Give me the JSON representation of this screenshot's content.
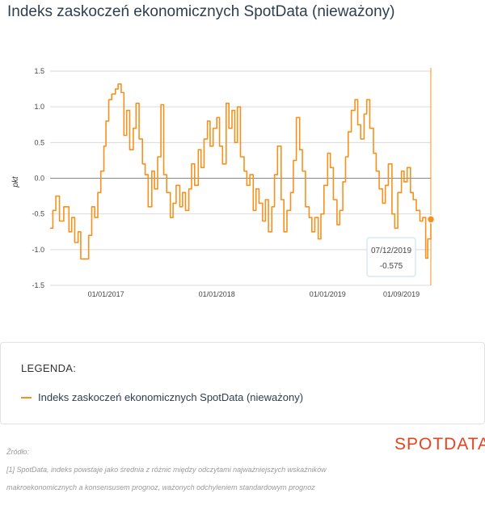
{
  "title": "Indeks zaskoczeń ekonomicznych SpotData (nieważony)",
  "chart_data": {
    "type": "line",
    "ylabel": "pkt",
    "ylim": [
      -1.5,
      1.5
    ],
    "yticks": [
      "1.5",
      "1.0",
      "0.5",
      "0.0",
      "-0.5",
      "-1.0",
      "-1.5"
    ],
    "yticks_values": [
      1.5,
      1.0,
      0.5,
      0.0,
      -0.5,
      -1.0,
      -1.5
    ],
    "xticks": [
      "01/01/2017",
      "01/01/2018",
      "01/01/2019",
      "01/09/2019"
    ],
    "xticks_dates": [
      "2017-01-01",
      "2018-01-01",
      "2019-01-01",
      "2019-09-01"
    ],
    "xlim": [
      "2016-07-01",
      "2019-12-07"
    ],
    "series": [
      {
        "color": "#f7911d",
        "points": [
          [
            "2016-07-01",
            -0.7
          ],
          [
            "2016-07-10",
            -0.45
          ],
          [
            "2016-07-20",
            -0.25
          ],
          [
            "2016-08-01",
            -0.6
          ],
          [
            "2016-08-15",
            -0.4
          ],
          [
            "2016-09-01",
            -0.75
          ],
          [
            "2016-09-10",
            -0.55
          ],
          [
            "2016-09-20",
            -0.9
          ],
          [
            "2016-10-01",
            -0.75
          ],
          [
            "2016-10-10",
            -1.13
          ],
          [
            "2016-10-25",
            -1.13
          ],
          [
            "2016-11-05",
            -0.8
          ],
          [
            "2016-11-15",
            -0.4
          ],
          [
            "2016-11-25",
            -0.55
          ],
          [
            "2016-12-05",
            -0.2
          ],
          [
            "2016-12-15",
            0.1
          ],
          [
            "2016-12-25",
            0.45
          ],
          [
            "2017-01-01",
            0.8
          ],
          [
            "2017-01-10",
            1.1
          ],
          [
            "2017-01-20",
            1.18
          ],
          [
            "2017-02-01",
            1.25
          ],
          [
            "2017-02-10",
            1.32
          ],
          [
            "2017-02-20",
            1.2
          ],
          [
            "2017-03-01",
            0.6
          ],
          [
            "2017-03-10",
            0.95
          ],
          [
            "2017-03-20",
            0.4
          ],
          [
            "2017-04-01",
            0.7
          ],
          [
            "2017-04-10",
            1.05
          ],
          [
            "2017-04-20",
            0.55
          ],
          [
            "2017-05-01",
            0.2
          ],
          [
            "2017-05-10",
            0.05
          ],
          [
            "2017-05-20",
            -0.4
          ],
          [
            "2017-06-01",
            0.1
          ],
          [
            "2017-06-10",
            -0.15
          ],
          [
            "2017-06-20",
            0.3
          ],
          [
            "2017-07-01",
            1.03
          ],
          [
            "2017-07-10",
            0.05
          ],
          [
            "2017-07-20",
            -0.2
          ],
          [
            "2017-08-01",
            -0.55
          ],
          [
            "2017-08-10",
            -0.35
          ],
          [
            "2017-08-20",
            -0.1
          ],
          [
            "2017-09-01",
            -0.4
          ],
          [
            "2017-09-10",
            -0.2
          ],
          [
            "2017-09-20",
            -0.45
          ],
          [
            "2017-10-01",
            -0.15
          ],
          [
            "2017-10-10",
            0.2
          ],
          [
            "2017-10-20",
            -0.1
          ],
          [
            "2017-11-01",
            0.4
          ],
          [
            "2017-11-10",
            0.15
          ],
          [
            "2017-11-20",
            0.55
          ],
          [
            "2017-12-01",
            0.8
          ],
          [
            "2017-12-10",
            0.45
          ],
          [
            "2017-12-20",
            0.7
          ],
          [
            "2018-01-01",
            0.85
          ],
          [
            "2018-01-10",
            0.45
          ],
          [
            "2018-01-20",
            0.2
          ],
          [
            "2018-02-01",
            1.05
          ],
          [
            "2018-02-10",
            0.7
          ],
          [
            "2018-02-20",
            0.95
          ],
          [
            "2018-03-01",
            0.5
          ],
          [
            "2018-03-10",
            1.0
          ],
          [
            "2018-03-20",
            0.3
          ],
          [
            "2018-04-01",
            0.1
          ],
          [
            "2018-04-10",
            -0.1
          ],
          [
            "2018-04-20",
            0.05
          ],
          [
            "2018-05-01",
            -0.45
          ],
          [
            "2018-05-10",
            -0.15
          ],
          [
            "2018-05-20",
            -0.35
          ],
          [
            "2018-06-01",
            -0.6
          ],
          [
            "2018-06-10",
            -0.3
          ],
          [
            "2018-06-20",
            -0.75
          ],
          [
            "2018-07-01",
            -0.4
          ],
          [
            "2018-07-10",
            0.05
          ],
          [
            "2018-07-20",
            0.45
          ],
          [
            "2018-08-01",
            -0.3
          ],
          [
            "2018-08-10",
            -0.75
          ],
          [
            "2018-08-20",
            -0.45
          ],
          [
            "2018-09-01",
            -0.2
          ],
          [
            "2018-09-10",
            0.25
          ],
          [
            "2018-09-20",
            0.85
          ],
          [
            "2018-10-01",
            0.4
          ],
          [
            "2018-10-10",
            0.1
          ],
          [
            "2018-10-20",
            -0.4
          ],
          [
            "2018-11-01",
            -0.55
          ],
          [
            "2018-11-10",
            -0.75
          ],
          [
            "2018-11-20",
            -0.55
          ],
          [
            "2018-12-01",
            -0.85
          ],
          [
            "2018-12-10",
            -0.5
          ],
          [
            "2018-12-20",
            -0.1
          ],
          [
            "2019-01-01",
            0.35
          ],
          [
            "2019-01-10",
            0.15
          ],
          [
            "2019-01-20",
            -0.3
          ],
          [
            "2019-02-01",
            -0.65
          ],
          [
            "2019-02-10",
            -0.45
          ],
          [
            "2019-02-20",
            -0.05
          ],
          [
            "2019-03-01",
            0.3
          ],
          [
            "2019-03-10",
            0.65
          ],
          [
            "2019-03-20",
            0.95
          ],
          [
            "2019-04-01",
            1.1
          ],
          [
            "2019-04-10",
            0.75
          ],
          [
            "2019-04-20",
            0.55
          ],
          [
            "2019-05-01",
            0.9
          ],
          [
            "2019-05-10",
            1.1
          ],
          [
            "2019-05-20",
            0.7
          ],
          [
            "2019-06-01",
            0.35
          ],
          [
            "2019-06-10",
            0.1
          ],
          [
            "2019-06-20",
            -0.15
          ],
          [
            "2019-07-01",
            -0.35
          ],
          [
            "2019-07-10",
            -0.1
          ],
          [
            "2019-07-20",
            0.2
          ],
          [
            "2019-08-01",
            -0.5
          ],
          [
            "2019-08-10",
            -0.7
          ],
          [
            "2019-08-20",
            -0.2
          ],
          [
            "2019-09-01",
            0.1
          ],
          [
            "2019-09-10",
            -0.05
          ],
          [
            "2019-09-20",
            0.15
          ],
          [
            "2019-10-01",
            -0.2
          ],
          [
            "2019-10-10",
            -0.3
          ],
          [
            "2019-10-20",
            -0.45
          ],
          [
            "2019-11-01",
            -0.6
          ],
          [
            "2019-11-10",
            -0.55
          ],
          [
            "2019-11-20",
            -1.12
          ],
          [
            "2019-11-27",
            -0.85
          ],
          [
            "2019-12-07",
            -0.575
          ]
        ]
      }
    ],
    "tooltip": {
      "date": "07/12/2019",
      "value": "-0.575"
    },
    "grid": true,
    "legend": {
      "title": "LEGENDA:",
      "entries": [
        "Indeks zaskoczeń ekonomicznych SpotData (nieważony)"
      ]
    }
  },
  "source": {
    "label": "Źródło:",
    "text": "[1] SpotData, indeks powstaje jako średnia z różnic między odczytami najważniejszych wskaźników makroekonomicznych a konsensusem prognoz, ważonych odchyleniem standardowym prognoz"
  },
  "logo": "SPOTDATA",
  "colors": {
    "series": "#f7911d",
    "logo": "#e8431f",
    "title": "#2d3e50"
  }
}
